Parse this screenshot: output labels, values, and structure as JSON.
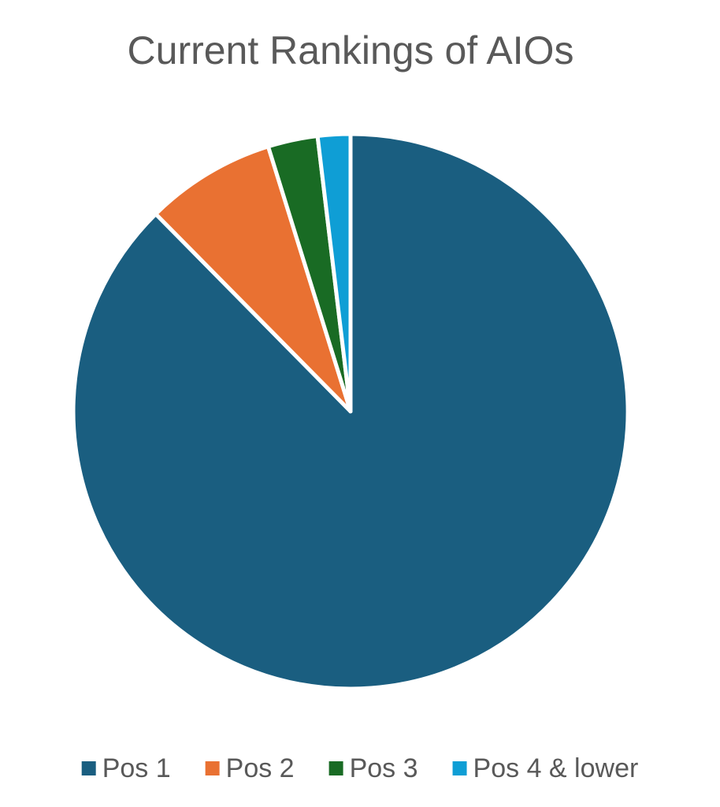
{
  "chart_data": {
    "type": "pie",
    "title": "Current Rankings of AIOs",
    "categories": [
      "Pos 1",
      "Pos 2",
      "Pos 3",
      "Pos 4 & lower"
    ],
    "values": [
      87.6,
      7.6,
      2.9,
      1.9
    ],
    "colors": [
      "#1a5e80",
      "#e97132",
      "#196b24",
      "#0f9ed5"
    ],
    "legend": "bottom"
  }
}
